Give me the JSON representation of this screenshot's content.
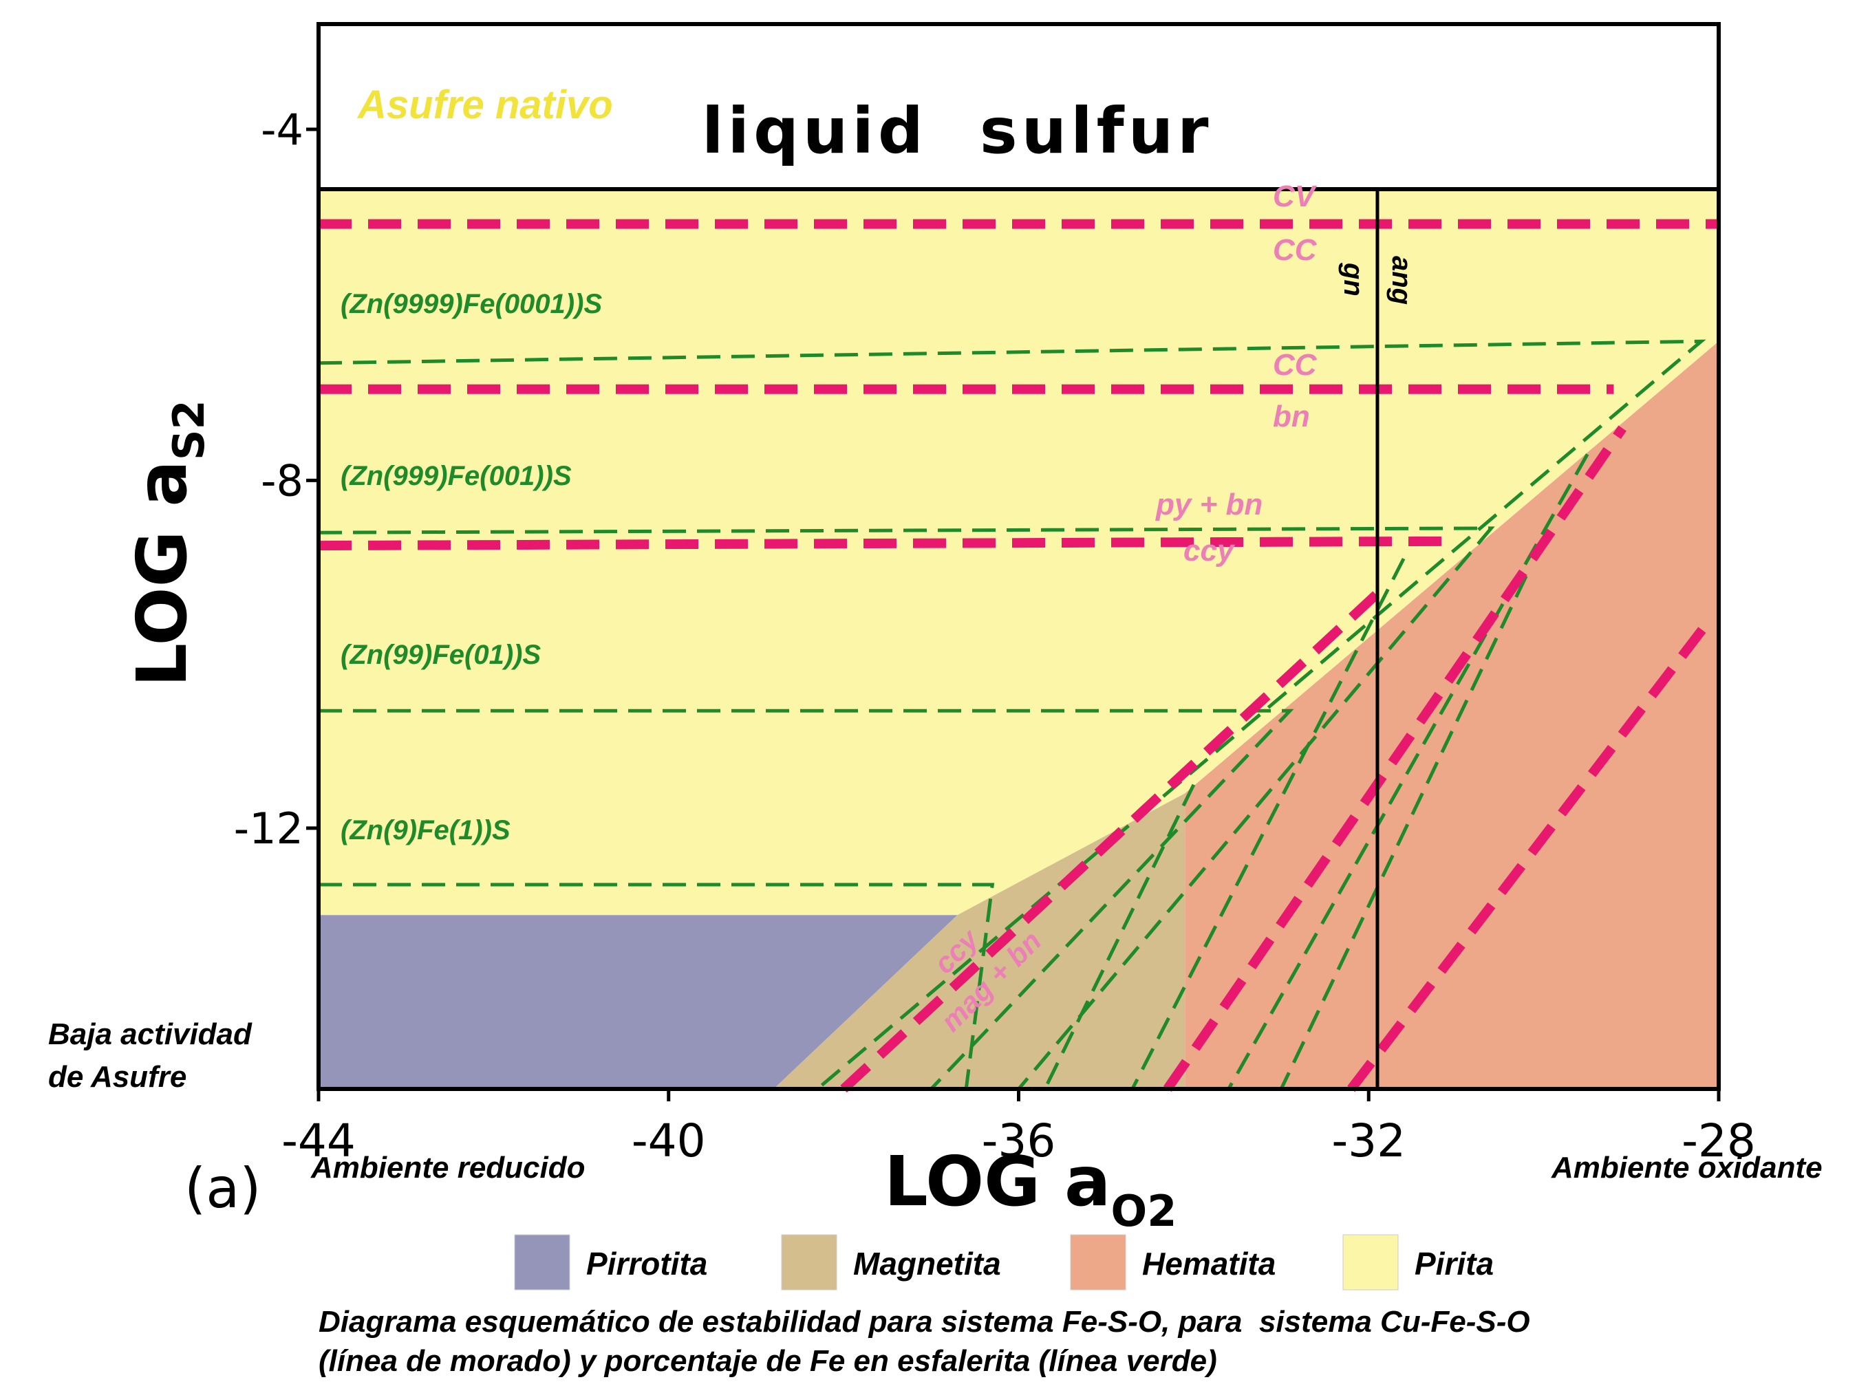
{
  "chart_data": {
    "type": "area",
    "title": "",
    "xlabel_main": "LOG a",
    "xlabel_sub": "O2",
    "ylabel_main": "LOG a",
    "ylabel_sub": "S2",
    "panel_label": "(a)",
    "xlim": [
      -44,
      -28
    ],
    "ylim": [
      -14.5,
      -2.3
    ],
    "x_ticks": [
      {
        "value": -44,
        "label": "-44"
      },
      {
        "value": -40,
        "label": "-40"
      },
      {
        "value": -36,
        "label": "-36"
      },
      {
        "value": -32,
        "label": "-32"
      },
      {
        "value": -28,
        "label": "-28"
      }
    ],
    "y_ticks": [
      {
        "value": -4,
        "label": "-4"
      },
      {
        "value": -8,
        "label": "-8"
      },
      {
        "value": -12,
        "label": "-12"
      }
    ],
    "liquid_sulfur_boundary": -4.65,
    "top_label": "liquid  sulfur",
    "top_label_es": "Asufre nativo",
    "regions": [
      {
        "name": "Pirita",
        "color": "#fbf6a8",
        "polygon": [
          [
            -44,
            -4.65
          ],
          [
            -28,
            -4.65
          ],
          [
            -28,
            -6.4
          ],
          [
            -34.1,
            -11.6
          ],
          [
            -36.7,
            -13.0
          ],
          [
            -44,
            -13.0
          ]
        ]
      },
      {
        "name": "Pirrotita",
        "color": "#9595ba",
        "polygon": [
          [
            -44,
            -13.0
          ],
          [
            -36.7,
            -13.0
          ],
          [
            -38.8,
            -15.0
          ],
          [
            -44,
            -15.0
          ]
        ]
      },
      {
        "name": "Magnetita",
        "color": "#d5be8e",
        "polygon": [
          [
            -36.7,
            -13.0
          ],
          [
            -34.1,
            -11.6
          ],
          [
            -34.1,
            -15.0
          ],
          [
            -38.8,
            -15.0
          ]
        ]
      },
      {
        "name": "Hematita",
        "color": "#eda789",
        "polygon": [
          [
            -34.1,
            -11.6
          ],
          [
            -28,
            -6.4
          ],
          [
            -28,
            -15.0
          ],
          [
            -34.1,
            -15.0
          ]
        ]
      }
    ],
    "vertical_line": {
      "x": -31.9,
      "y_top": -4.65,
      "y_bottom": -15.0,
      "label_left": "gn",
      "label_right": "ang"
    },
    "cu_lines_color": "#e8186e",
    "cu_lines": [
      {
        "points": [
          [
            -44,
            -5.05
          ],
          [
            -28,
            -5.05
          ]
        ],
        "label_top": "CV",
        "label_bottom": "CC"
      },
      {
        "points": [
          [
            -44,
            -6.95
          ],
          [
            -29.2,
            -6.95
          ]
        ],
        "label_top": "CC",
        "label_bottom": "bn"
      },
      {
        "points": [
          [
            -44,
            -8.75
          ],
          [
            -31.1,
            -8.7
          ]
        ],
        "label_top": "py + bn",
        "label_bottom": "ccy"
      },
      {
        "points": [
          [
            -38.0,
            -15.0
          ],
          [
            -31.9,
            -9.3
          ]
        ]
      },
      {
        "points": [
          [
            -34.3,
            -15.0
          ],
          [
            -29.1,
            -7.4
          ]
        ]
      },
      {
        "points": [
          [
            -32.2,
            -15.0
          ],
          [
            -28.1,
            -9.6
          ]
        ]
      }
    ],
    "sp_lines_color": "#1e8a2a",
    "sp_lines": [
      {
        "label": "(Zn(9999)Fe(0001))S",
        "points": [
          [
            -44,
            -6.65
          ],
          [
            -28.2,
            -6.4
          ],
          [
            -38.3,
            -15.0
          ]
        ]
      },
      {
        "label": "(Zn(999)Fe(001))S",
        "points": [
          [
            -44,
            -8.6
          ],
          [
            -30.6,
            -8.55
          ],
          [
            -36.0,
            -15.0
          ]
        ]
      },
      {
        "label": "(Zn(99)Fe(01))S",
        "points": [
          [
            -44,
            -10.65
          ],
          [
            -32.9,
            -10.65
          ],
          [
            -37.0,
            -15.0
          ]
        ]
      },
      {
        "label": "(Zn(9)Fe(1))S",
        "points": [
          [
            -44,
            -12.65
          ],
          [
            -36.3,
            -12.65
          ],
          [
            -36.6,
            -15.0
          ]
        ]
      },
      {
        "points": [
          [
            -29.5,
            -7.7
          ],
          [
            -33.6,
            -15.0
          ]
        ]
      },
      {
        "points": [
          [
            -30.2,
            -9.1
          ],
          [
            -33.0,
            -15.0
          ]
        ]
      },
      {
        "points": [
          [
            -31.6,
            -8.9
          ],
          [
            -34.7,
            -15.0
          ]
        ]
      },
      {
        "points": [
          [
            -34.0,
            -11.5
          ],
          [
            -35.7,
            -15.0
          ]
        ]
      }
    ],
    "annotation_ccy": "ccy",
    "annotation_magbn": "mag + bn",
    "left_note": [
      "Baja actividad",
      "de Asufre"
    ],
    "x_left_note": "Ambiente reducido",
    "x_right_note": "Ambiente oxidante",
    "legend": [
      {
        "name": "Pirrotita",
        "color": "#9595ba"
      },
      {
        "name": "Magnetita",
        "color": "#d5be8e"
      },
      {
        "name": "Hematita",
        "color": "#eda789"
      },
      {
        "name": "Pirita",
        "color": "#fbf6a8"
      }
    ],
    "caption": [
      "Diagrama esquemático de estabilidad para sistema Fe-S-O, para  sistema Cu-Fe-S-O",
      "(línea de morado) y porcentaje de Fe en esfalerita (línea verde)"
    ]
  }
}
